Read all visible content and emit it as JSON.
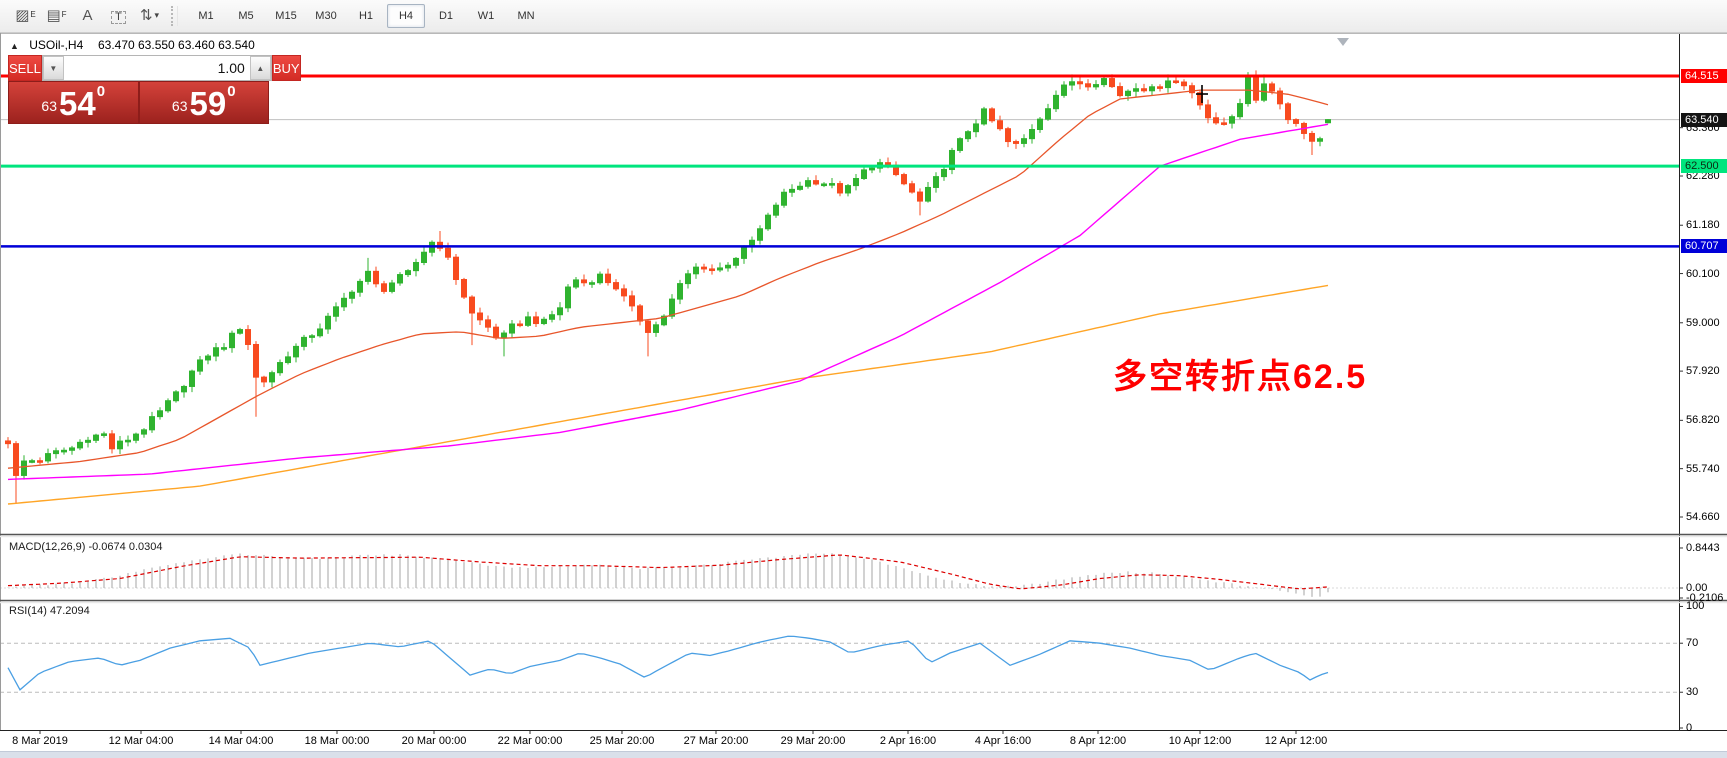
{
  "toolbar": {
    "tools": [
      {
        "name": "equidistant-channel-icon",
        "glyph": "▨",
        "sub": "E"
      },
      {
        "name": "fibonacci-retracement-icon",
        "glyph": "▤",
        "sub": "F"
      },
      {
        "name": "text-label-icon",
        "glyph": "A",
        "sub": ""
      },
      {
        "name": "text-box-icon",
        "glyph": "T",
        "sub": ""
      },
      {
        "name": "arrows-tool-icon",
        "glyph": "⇅",
        "sub": "▾"
      }
    ],
    "timeframes": [
      {
        "label": "M1",
        "active": false
      },
      {
        "label": "M5",
        "active": false
      },
      {
        "label": "M15",
        "active": false
      },
      {
        "label": "M30",
        "active": false
      },
      {
        "label": "H1",
        "active": false
      },
      {
        "label": "H4",
        "active": true
      },
      {
        "label": "D1",
        "active": false
      },
      {
        "label": "W1",
        "active": false
      },
      {
        "label": "MN",
        "active": false
      }
    ]
  },
  "chart_header": {
    "collapse_glyph": "▲",
    "symbol_tf": "USOil-,H4",
    "ohlc_text": "63.470 63.550 63.460 63.540"
  },
  "trade_panel": {
    "sell_label": "SELL",
    "buy_label": "BUY",
    "volume": "1.00",
    "stepper_down": "▼",
    "stepper_up": "▲",
    "sell_price": {
      "prefix": "63",
      "big": "54",
      "sup": "0"
    },
    "buy_price": {
      "prefix": "63",
      "big": "59",
      "sup": "0"
    }
  },
  "annotation": {
    "text": "多空转折点62.5",
    "color": "#ff0000"
  },
  "indicators": {
    "macd_label": "MACD(12,26,9) -0.0674 0.0304",
    "rsi_label": "RSI(14) 47.2094"
  },
  "chart_data": {
    "type": "candlestick",
    "symbol": "USOil-",
    "timeframe": "H4",
    "last_ohlc": {
      "open": 63.47,
      "high": 63.55,
      "low": 63.46,
      "close": 63.54
    },
    "candle_colors": {
      "up": "#2fb32f",
      "down": "#f84b1f"
    },
    "levels": [
      {
        "label": "64.515",
        "price": 64.515,
        "color": "#ff0000",
        "width": 3,
        "badge_fg": "#ffffff"
      },
      {
        "label": "62.500",
        "price": 62.5,
        "color": "#00e57e",
        "width": 3,
        "badge_fg": "#0c2a12"
      },
      {
        "label": "60.707",
        "price": 60.707,
        "color": "#0000d8",
        "width": 2.5,
        "badge_fg": "#ffffff"
      }
    ],
    "current_price": {
      "label": "63.540",
      "price": 63.54,
      "line_color": "#c0c0c0",
      "badge_bg": "#141414",
      "badge_fg": "#ffffff"
    },
    "y_ticks": [
      "63.360",
      "62.280",
      "61.180",
      "60.100",
      "59.000",
      "57.920",
      "56.820",
      "55.740",
      "54.660"
    ],
    "x_labels": [
      {
        "t": "8 Mar 2019",
        "x": 40
      },
      {
        "t": "12 Mar 04:00",
        "x": 141
      },
      {
        "t": "14 Mar 04:00",
        "x": 241
      },
      {
        "t": "18 Mar 00:00",
        "x": 337
      },
      {
        "t": "20 Mar 00:00",
        "x": 434
      },
      {
        "t": "22 Mar 00:00",
        "x": 530
      },
      {
        "t": "25 Mar 20:00",
        "x": 622
      },
      {
        "t": "27 Mar 20:00",
        "x": 716
      },
      {
        "t": "29 Mar 20:00",
        "x": 813
      },
      {
        "t": "2 Apr 16:00",
        "x": 908
      },
      {
        "t": "4 Apr 16:00",
        "x": 1003
      },
      {
        "t": "8 Apr 12:00",
        "x": 1098
      },
      {
        "t": "10 Apr 12:00",
        "x": 1200
      },
      {
        "t": "12 Apr 12:00",
        "x": 1296
      }
    ],
    "price_path": [
      [
        8,
        56.35
      ],
      [
        16,
        55.55
      ],
      [
        24,
        55.9
      ],
      [
        40,
        55.95
      ],
      [
        56,
        56.1
      ],
      [
        72,
        56.2
      ],
      [
        88,
        56.45
      ],
      [
        104,
        56.5
      ],
      [
        112,
        56.2
      ],
      [
        128,
        56.4
      ],
      [
        144,
        56.65
      ],
      [
        160,
        57.0
      ],
      [
        176,
        57.4
      ],
      [
        192,
        57.9
      ],
      [
        208,
        58.3
      ],
      [
        224,
        58.5
      ],
      [
        240,
        58.9
      ],
      [
        250,
        58.45
      ],
      [
        258,
        57.55
      ],
      [
        272,
        57.9
      ],
      [
        288,
        58.3
      ],
      [
        304,
        58.6
      ],
      [
        320,
        58.9
      ],
      [
        336,
        59.3
      ],
      [
        352,
        59.75
      ],
      [
        368,
        60.1
      ],
      [
        380,
        59.7
      ],
      [
        392,
        59.9
      ],
      [
        408,
        60.1
      ],
      [
        424,
        60.6
      ],
      [
        436,
        60.9
      ],
      [
        448,
        60.4
      ],
      [
        460,
        59.8
      ],
      [
        472,
        59.2
      ],
      [
        488,
        58.9
      ],
      [
        500,
        58.6
      ],
      [
        512,
        58.9
      ],
      [
        528,
        59.1
      ],
      [
        544,
        59.0
      ],
      [
        560,
        59.35
      ],
      [
        572,
        60.0
      ],
      [
        584,
        59.9
      ],
      [
        600,
        60.05
      ],
      [
        616,
        59.8
      ],
      [
        632,
        59.3
      ],
      [
        648,
        58.85
      ],
      [
        660,
        59.0
      ],
      [
        672,
        59.5
      ],
      [
        684,
        60.0
      ],
      [
        700,
        60.3
      ],
      [
        716,
        60.15
      ],
      [
        732,
        60.4
      ],
      [
        748,
        60.7
      ],
      [
        764,
        61.2
      ],
      [
        780,
        61.8
      ],
      [
        796,
        62.05
      ],
      [
        812,
        62.2
      ],
      [
        828,
        62.1
      ],
      [
        844,
        61.9
      ],
      [
        860,
        62.3
      ],
      [
        876,
        62.6
      ],
      [
        892,
        62.4
      ],
      [
        908,
        62.0
      ],
      [
        920,
        61.7
      ],
      [
        936,
        62.2
      ],
      [
        952,
        62.8
      ],
      [
        968,
        63.3
      ],
      [
        984,
        63.7
      ],
      [
        1000,
        63.3
      ],
      [
        1012,
        62.9
      ],
      [
        1024,
        63.1
      ],
      [
        1040,
        63.6
      ],
      [
        1056,
        64.1
      ],
      [
        1072,
        64.4
      ],
      [
        1088,
        64.35
      ],
      [
        1104,
        64.45
      ],
      [
        1120,
        64.1
      ],
      [
        1136,
        64.3
      ],
      [
        1152,
        64.2
      ],
      [
        1168,
        64.45
      ],
      [
        1184,
        64.3
      ],
      [
        1196,
        64.1
      ],
      [
        1208,
        63.6
      ],
      [
        1216,
        63.4
      ],
      [
        1228,
        63.5
      ],
      [
        1240,
        63.95
      ],
      [
        1248,
        64.45
      ],
      [
        1254,
        63.85
      ],
      [
        1262,
        64.45
      ],
      [
        1270,
        64.2
      ],
      [
        1278,
        64.1
      ],
      [
        1286,
        63.55
      ],
      [
        1294,
        63.5
      ],
      [
        1302,
        63.4
      ],
      [
        1310,
        62.95
      ],
      [
        1318,
        63.2
      ],
      [
        1326,
        63.05
      ],
      [
        1332,
        63.54
      ]
    ],
    "wick_overrides": [
      {
        "x": 16,
        "low": 54.95
      },
      {
        "x": 258,
        "low": 56.9
      },
      {
        "x": 368,
        "high": 60.45
      },
      {
        "x": 436,
        "high": 61.05
      },
      {
        "x": 472,
        "low": 58.5
      },
      {
        "x": 500,
        "low": 58.25
      },
      {
        "x": 648,
        "low": 58.25
      },
      {
        "x": 920,
        "low": 61.4
      },
      {
        "x": 1072,
        "high": 64.55
      },
      {
        "x": 1168,
        "high": 64.55
      },
      {
        "x": 1248,
        "high": 64.6
      },
      {
        "x": 1262,
        "high": 64.55
      },
      {
        "x": 1310,
        "low": 62.75
      }
    ],
    "ma_fast": {
      "color": "#e8562b",
      "points": [
        [
          8,
          55.75
        ],
        [
          80,
          55.9
        ],
        [
          140,
          56.1
        ],
        [
          180,
          56.4
        ],
        [
          220,
          56.9
        ],
        [
          260,
          57.4
        ],
        [
          300,
          57.85
        ],
        [
          340,
          58.2
        ],
        [
          380,
          58.5
        ],
        [
          420,
          58.75
        ],
        [
          460,
          58.8
        ],
        [
          500,
          58.65
        ],
        [
          540,
          58.7
        ],
        [
          580,
          58.9
        ],
        [
          620,
          59.0
        ],
        [
          660,
          59.1
        ],
        [
          700,
          59.35
        ],
        [
          740,
          59.6
        ],
        [
          780,
          60.0
        ],
        [
          820,
          60.35
        ],
        [
          860,
          60.65
        ],
        [
          900,
          61.0
        ],
        [
          940,
          61.4
        ],
        [
          980,
          61.85
        ],
        [
          1020,
          62.3
        ],
        [
          1060,
          63.1
        ],
        [
          1090,
          63.65
        ],
        [
          1120,
          64.0
        ],
        [
          1160,
          64.1
        ],
        [
          1200,
          64.2
        ],
        [
          1250,
          64.2
        ],
        [
          1290,
          64.1
        ],
        [
          1332,
          63.85
        ]
      ]
    },
    "ma_mid": {
      "color": "#ff00ff",
      "points": [
        [
          8,
          55.5
        ],
        [
          150,
          55.62
        ],
        [
          300,
          55.98
        ],
        [
          450,
          56.25
        ],
        [
          560,
          56.55
        ],
        [
          680,
          57.05
        ],
        [
          800,
          57.7
        ],
        [
          900,
          58.7
        ],
        [
          1000,
          59.9
        ],
        [
          1080,
          60.95
        ],
        [
          1160,
          62.5
        ],
        [
          1240,
          63.1
        ],
        [
          1332,
          63.45
        ]
      ]
    },
    "ma_slow": {
      "color": "#ffa526",
      "points": [
        [
          8,
          54.95
        ],
        [
          200,
          55.35
        ],
        [
          400,
          56.15
        ],
        [
          600,
          56.95
        ],
        [
          800,
          57.75
        ],
        [
          990,
          58.35
        ],
        [
          1160,
          59.2
        ],
        [
          1332,
          59.85
        ]
      ]
    },
    "macd": {
      "bar_color": "#b4b4b4",
      "signal_color": "#dd0000",
      "axis": [
        {
          "t": "0.8443",
          "v": 0.8443
        },
        {
          "t": "0.00",
          "v": 0
        },
        {
          "t": "-0.2106",
          "v": -0.2106
        }
      ],
      "bars": [
        [
          8,
          0.02
        ],
        [
          40,
          0.06
        ],
        [
          80,
          0.12
        ],
        [
          120,
          0.26
        ],
        [
          160,
          0.46
        ],
        [
          200,
          0.62
        ],
        [
          240,
          0.72
        ],
        [
          280,
          0.66
        ],
        [
          320,
          0.62
        ],
        [
          360,
          0.68
        ],
        [
          400,
          0.7
        ],
        [
          440,
          0.62
        ],
        [
          480,
          0.5
        ],
        [
          520,
          0.43
        ],
        [
          560,
          0.46
        ],
        [
          600,
          0.48
        ],
        [
          640,
          0.41
        ],
        [
          680,
          0.43
        ],
        [
          720,
          0.52
        ],
        [
          760,
          0.62
        ],
        [
          800,
          0.7
        ],
        [
          830,
          0.74
        ],
        [
          860,
          0.65
        ],
        [
          900,
          0.45
        ],
        [
          930,
          0.25
        ],
        [
          960,
          0.1
        ],
        [
          990,
          0.04
        ],
        [
          1010,
          0.03
        ],
        [
          1040,
          0.1
        ],
        [
          1070,
          0.22
        ],
        [
          1100,
          0.3
        ],
        [
          1130,
          0.34
        ],
        [
          1160,
          0.3
        ],
        [
          1190,
          0.22
        ],
        [
          1220,
          0.12
        ],
        [
          1250,
          0.03
        ],
        [
          1280,
          -0.06
        ],
        [
          1300,
          -0.15
        ],
        [
          1315,
          -0.21
        ],
        [
          1332,
          -0.07
        ]
      ],
      "signal": [
        [
          8,
          0.05
        ],
        [
          60,
          0.1
        ],
        [
          120,
          0.2
        ],
        [
          180,
          0.45
        ],
        [
          240,
          0.66
        ],
        [
          300,
          0.63
        ],
        [
          360,
          0.64
        ],
        [
          420,
          0.65
        ],
        [
          480,
          0.55
        ],
        [
          540,
          0.47
        ],
        [
          600,
          0.47
        ],
        [
          660,
          0.43
        ],
        [
          720,
          0.48
        ],
        [
          780,
          0.6
        ],
        [
          840,
          0.7
        ],
        [
          900,
          0.55
        ],
        [
          950,
          0.3
        ],
        [
          990,
          0.08
        ],
        [
          1020,
          -0.02
        ],
        [
          1060,
          0.06
        ],
        [
          1100,
          0.2
        ],
        [
          1140,
          0.28
        ],
        [
          1180,
          0.26
        ],
        [
          1220,
          0.18
        ],
        [
          1260,
          0.08
        ],
        [
          1300,
          -0.02
        ],
        [
          1332,
          0.03
        ]
      ]
    },
    "rsi": {
      "color": "#4a9fe3",
      "levels": [
        {
          "t": "100",
          "v": 100
        },
        {
          "t": "70",
          "v": 70
        },
        {
          "t": "30",
          "v": 30
        },
        {
          "t": "0",
          "v": 0
        }
      ],
      "dashed_levels": [
        70,
        30
      ],
      "last_value": 47.2094,
      "points": [
        [
          8,
          50
        ],
        [
          20,
          32
        ],
        [
          40,
          46
        ],
        [
          70,
          55
        ],
        [
          100,
          58
        ],
        [
          120,
          52
        ],
        [
          140,
          56
        ],
        [
          170,
          66
        ],
        [
          200,
          72
        ],
        [
          230,
          74
        ],
        [
          250,
          66
        ],
        [
          260,
          52
        ],
        [
          280,
          56
        ],
        [
          310,
          62
        ],
        [
          340,
          66
        ],
        [
          370,
          70
        ],
        [
          400,
          67
        ],
        [
          430,
          72
        ],
        [
          450,
          58
        ],
        [
          470,
          44
        ],
        [
          490,
          49
        ],
        [
          510,
          45
        ],
        [
          530,
          51
        ],
        [
          560,
          56
        ],
        [
          580,
          62
        ],
        [
          600,
          58
        ],
        [
          620,
          53
        ],
        [
          645,
          42
        ],
        [
          660,
          49
        ],
        [
          690,
          62
        ],
        [
          710,
          60
        ],
        [
          730,
          64
        ],
        [
          760,
          71
        ],
        [
          790,
          76
        ],
        [
          810,
          74
        ],
        [
          830,
          71
        ],
        [
          850,
          62
        ],
        [
          880,
          68
        ],
        [
          910,
          72
        ],
        [
          930,
          54
        ],
        [
          950,
          62
        ],
        [
          980,
          70
        ],
        [
          1010,
          52
        ],
        [
          1040,
          61
        ],
        [
          1070,
          72
        ],
        [
          1100,
          70
        ],
        [
          1130,
          66
        ],
        [
          1160,
          60
        ],
        [
          1190,
          56
        ],
        [
          1210,
          48
        ],
        [
          1240,
          58
        ],
        [
          1255,
          62
        ],
        [
          1280,
          52
        ],
        [
          1300,
          46
        ],
        [
          1310,
          40
        ],
        [
          1320,
          44
        ],
        [
          1332,
          47.2
        ]
      ]
    },
    "cross_marker": {
      "x": 1202,
      "y": 93
    },
    "shift_marker": {
      "x": 1343,
      "y": 38
    }
  }
}
